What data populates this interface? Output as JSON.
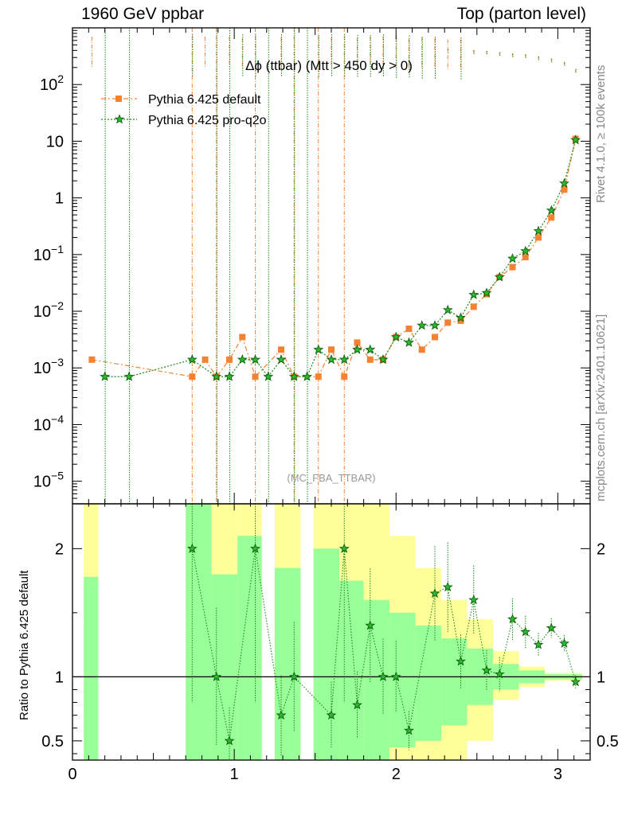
{
  "header": {
    "left": "1960 GeV ppbar",
    "right": "Top (parton level)"
  },
  "side_labels": {
    "rivet": "Rivet 4.1.0, ≥ 100k events",
    "mcplots": "mcplots.cern.ch [arXiv:2401.10621]"
  },
  "colors": {
    "default": "#f58231",
    "pro": "#1a8a1a",
    "band_yellow": "#ffff99",
    "band_green": "#99ff99"
  },
  "chart_data": {
    "type": "line",
    "title": "Δϕ (ttbar) (Mtt > 450 dy > 0)",
    "watermark": "(MC_FBA_TTBAR)",
    "xlabel": "",
    "ylabel": "",
    "ratio_ylabel": "Ratio to Pythia 6.425 default",
    "x_ticks": [
      "0",
      "1",
      "2",
      "3"
    ],
    "xlim": [
      0,
      3.2
    ],
    "ylim": [
      4e-06,
      1000
    ],
    "y_scale": "log",
    "ratio_ylim": [
      0.35,
      2.35
    ],
    "y_ticks": [
      {
        "base": "10",
        "exp": "2"
      },
      {
        "base": "10",
        "exp": ""
      },
      {
        "base": "1",
        "exp": ""
      },
      {
        "base": "10",
        "exp": "−1"
      },
      {
        "base": "10",
        "exp": "−2"
      },
      {
        "base": "10",
        "exp": "−3"
      },
      {
        "base": "10",
        "exp": "−4"
      },
      {
        "base": "10",
        "exp": "−5"
      }
    ],
    "ratio_ticks": [
      "2",
      "1",
      "0.5"
    ],
    "legend": [
      "Pythia 6.425 default",
      "Pythia 6.425 pro-q2o"
    ],
    "series": [
      {
        "name": "Pythia 6.425 default",
        "marker": "square",
        "points": [
          {
            "x": 0.12,
            "y": 0.0014
          },
          {
            "x": 0.74,
            "y": 0.0007
          },
          {
            "x": 0.82,
            "y": 0.0014
          },
          {
            "x": 0.89,
            "y": 0.0007
          },
          {
            "x": 0.97,
            "y": 0.0014
          },
          {
            "x": 1.05,
            "y": 0.0035
          },
          {
            "x": 1.13,
            "y": 0.0007
          },
          {
            "x": 1.29,
            "y": 0.0021
          },
          {
            "x": 1.37,
            "y": 0.0007
          },
          {
            "x": 1.52,
            "y": 0.0007
          },
          {
            "x": 1.6,
            "y": 0.0021
          },
          {
            "x": 1.68,
            "y": 0.0007
          },
          {
            "x": 1.76,
            "y": 0.0028
          },
          {
            "x": 1.84,
            "y": 0.0014
          },
          {
            "x": 1.92,
            "y": 0.0014
          },
          {
            "x": 2.0,
            "y": 0.0035
          },
          {
            "x": 2.08,
            "y": 0.0049
          },
          {
            "x": 2.16,
            "y": 0.0021
          },
          {
            "x": 2.24,
            "y": 0.0035
          },
          {
            "x": 2.32,
            "y": 0.0063
          },
          {
            "x": 2.4,
            "y": 0.0068
          },
          {
            "x": 2.48,
            "y": 0.012
          },
          {
            "x": 2.56,
            "y": 0.02
          },
          {
            "x": 2.64,
            "y": 0.04
          },
          {
            "x": 2.72,
            "y": 0.06
          },
          {
            "x": 2.8,
            "y": 0.09
          },
          {
            "x": 2.88,
            "y": 0.2
          },
          {
            "x": 2.96,
            "y": 0.45
          },
          {
            "x": 3.04,
            "y": 1.4
          },
          {
            "x": 3.11,
            "y": 11
          }
        ]
      },
      {
        "name": "Pythia 6.425 pro-q2o",
        "marker": "star",
        "points": [
          {
            "x": 0.2,
            "y": 0.0007
          },
          {
            "x": 0.35,
            "y": 0.0007
          },
          {
            "x": 0.74,
            "y": 0.0014
          },
          {
            "x": 0.89,
            "y": 0.0007
          },
          {
            "x": 0.97,
            "y": 0.0007
          },
          {
            "x": 1.05,
            "y": 0.0014
          },
          {
            "x": 1.13,
            "y": 0.0014
          },
          {
            "x": 1.21,
            "y": 0.0007
          },
          {
            "x": 1.29,
            "y": 0.0014
          },
          {
            "x": 1.37,
            "y": 0.0007
          },
          {
            "x": 1.45,
            "y": 0.0007
          },
          {
            "x": 1.52,
            "y": 0.0021
          },
          {
            "x": 1.6,
            "y": 0.0014
          },
          {
            "x": 1.68,
            "y": 0.0014
          },
          {
            "x": 1.76,
            "y": 0.0021
          },
          {
            "x": 1.84,
            "y": 0.0021
          },
          {
            "x": 1.92,
            "y": 0.0014
          },
          {
            "x": 2.0,
            "y": 0.0035
          },
          {
            "x": 2.08,
            "y": 0.0028
          },
          {
            "x": 2.16,
            "y": 0.0056
          },
          {
            "x": 2.24,
            "y": 0.0056
          },
          {
            "x": 2.32,
            "y": 0.0105
          },
          {
            "x": 2.4,
            "y": 0.0077
          },
          {
            "x": 2.48,
            "y": 0.0195
          },
          {
            "x": 2.56,
            "y": 0.021
          },
          {
            "x": 2.64,
            "y": 0.04
          },
          {
            "x": 2.72,
            "y": 0.085
          },
          {
            "x": 2.8,
            "y": 0.115
          },
          {
            "x": 2.88,
            "y": 0.26
          },
          {
            "x": 2.96,
            "y": 0.6
          },
          {
            "x": 3.04,
            "y": 1.8
          },
          {
            "x": 3.11,
            "y": 10.5
          }
        ]
      }
    ],
    "ratio_points": [
      {
        "x": 0.74,
        "y": 2.0
      },
      {
        "x": 0.89,
        "y": 1.0
      },
      {
        "x": 0.97,
        "y": 0.5
      },
      {
        "x": 1.13,
        "y": 2.0
      },
      {
        "x": 1.29,
        "y": 0.7
      },
      {
        "x": 1.37,
        "y": 1.0
      },
      {
        "x": 1.6,
        "y": 0.7
      },
      {
        "x": 1.68,
        "y": 2.0
      },
      {
        "x": 1.76,
        "y": 0.78
      },
      {
        "x": 1.84,
        "y": 1.4
      },
      {
        "x": 1.92,
        "y": 1.0
      },
      {
        "x": 2.0,
        "y": 1.0
      },
      {
        "x": 2.08,
        "y": 0.58
      },
      {
        "x": 2.24,
        "y": 1.65
      },
      {
        "x": 2.32,
        "y": 1.7
      },
      {
        "x": 2.4,
        "y": 1.12
      },
      {
        "x": 2.48,
        "y": 1.6
      },
      {
        "x": 2.56,
        "y": 1.05
      },
      {
        "x": 2.64,
        "y": 1.02
      },
      {
        "x": 2.72,
        "y": 1.45
      },
      {
        "x": 2.8,
        "y": 1.35
      },
      {
        "x": 2.88,
        "y": 1.25
      },
      {
        "x": 2.96,
        "y": 1.38
      },
      {
        "x": 3.04,
        "y": 1.26
      },
      {
        "x": 3.11,
        "y": 0.96
      }
    ],
    "ratio_bands": [
      {
        "x0": 0.07,
        "x1": 0.16,
        "y_lo": 0.35,
        "y_hi": 2.35,
        "g_lo": 0.35,
        "g_hi": 1.78
      },
      {
        "x0": 0.7,
        "x1": 0.86,
        "y_lo": 0.35,
        "y_hi": 2.35,
        "g_lo": 0.35,
        "g_hi": 2.35
      },
      {
        "x0": 0.86,
        "x1": 1.02,
        "y_lo": 0.35,
        "y_hi": 2.35,
        "g_lo": 0.35,
        "g_hi": 1.8
      },
      {
        "x0": 1.02,
        "x1": 1.17,
        "y_lo": 0.35,
        "y_hi": 2.35,
        "g_lo": 0.35,
        "g_hi": 2.1
      },
      {
        "x0": 1.25,
        "x1": 1.41,
        "y_lo": 0.35,
        "y_hi": 2.35,
        "g_lo": 0.35,
        "g_hi": 1.85
      },
      {
        "x0": 1.49,
        "x1": 1.65,
        "y_lo": 0.35,
        "y_hi": 2.35,
        "g_lo": 0.35,
        "g_hi": 2.0
      },
      {
        "x0": 1.65,
        "x1": 1.8,
        "y_lo": 0.35,
        "y_hi": 2.35,
        "g_lo": 0.35,
        "g_hi": 1.75
      },
      {
        "x0": 1.8,
        "x1": 1.96,
        "y_lo": 0.35,
        "y_hi": 2.35,
        "g_lo": 0.35,
        "g_hi": 1.6
      },
      {
        "x0": 1.96,
        "x1": 2.12,
        "y_lo": 0.35,
        "y_hi": 2.1,
        "g_lo": 0.45,
        "g_hi": 1.5
      },
      {
        "x0": 2.12,
        "x1": 2.28,
        "y_lo": 0.35,
        "y_hi": 1.85,
        "g_lo": 0.5,
        "g_hi": 1.4
      },
      {
        "x0": 2.28,
        "x1": 2.44,
        "y_lo": 0.35,
        "y_hi": 1.6,
        "g_lo": 0.62,
        "g_hi": 1.3
      },
      {
        "x0": 2.44,
        "x1": 2.6,
        "y_lo": 0.5,
        "y_hi": 1.45,
        "g_lo": 0.78,
        "g_hi": 1.22
      },
      {
        "x0": 2.6,
        "x1": 2.76,
        "y_lo": 0.82,
        "y_hi": 1.2,
        "g_lo": 0.9,
        "g_hi": 1.1
      },
      {
        "x0": 2.76,
        "x1": 2.92,
        "y_lo": 0.92,
        "y_hi": 1.08,
        "g_lo": 0.95,
        "g_hi": 1.05
      },
      {
        "x0": 2.92,
        "x1": 3.15,
        "y_lo": 0.97,
        "y_hi": 1.03,
        "g_lo": 0.98,
        "g_hi": 1.02
      }
    ]
  }
}
